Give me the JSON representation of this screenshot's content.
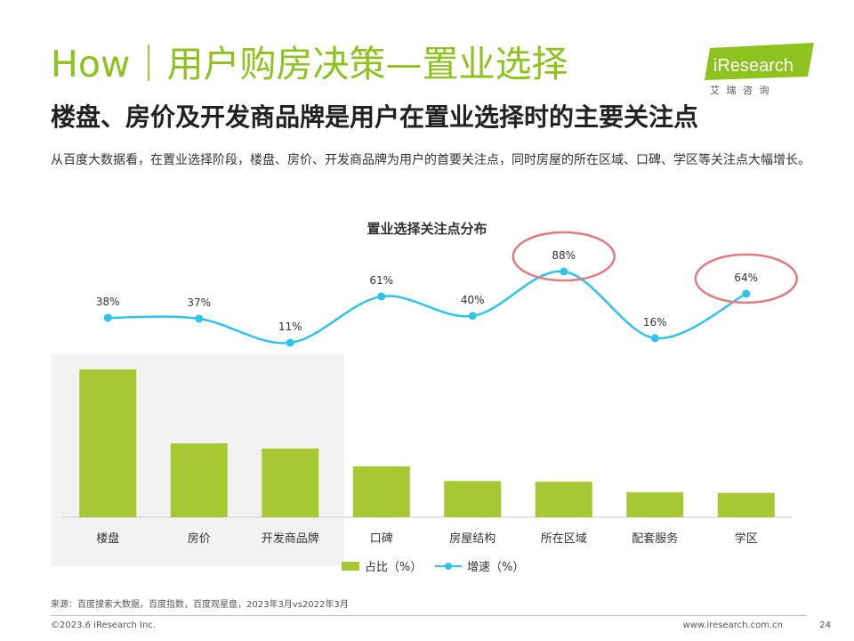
{
  "header": {
    "title": "How｜用户购房决策—置业选择",
    "subtitle": "楼盘、房价及开发商品牌是用户在置业选择时的主要关注点",
    "description": "从百度大数据看，在置业选择阶段，楼盘、房价、开发商品牌为用户的首要关注点，同时房屋的所在区域、口碑、学区等关注点大幅增长。"
  },
  "logo": {
    "brand": "iResearch",
    "cn": "艾 瑞 咨 询",
    "colors": {
      "green": "#8dc21f",
      "text": "#ffffff"
    }
  },
  "chart_data": {
    "type": "bar",
    "title": "置业选择关注点分布",
    "categories": [
      "楼盘",
      "房价",
      "开发商品牌",
      "口碑",
      "房屋结构",
      "所在区域",
      "配套服务",
      "学区"
    ],
    "series": [
      {
        "name": "占比（%）",
        "type": "bar",
        "color": "#a6c933",
        "values": [
          100,
          50,
          46.5,
          34.5,
          24.5,
          24,
          17,
          16.5
        ]
      },
      {
        "name": "增速（%）",
        "type": "line",
        "color": "#2ec4ea",
        "values": [
          38,
          37,
          11,
          61,
          40,
          88,
          16,
          64
        ],
        "labels": [
          "38%",
          "37%",
          "11%",
          "61%",
          "40%",
          "88%",
          "16%",
          "64%"
        ]
      }
    ],
    "highlights": [
      "所在区域",
      "学区"
    ],
    "shaded_categories": [
      "楼盘",
      "房价",
      "开发商品牌"
    ],
    "colors": {
      "shade": "#f2f2f2",
      "highlight_ring": "#e07a82",
      "axis": "#cccccc"
    }
  },
  "footer": {
    "source": "来源：百度搜索大数据，百度指数，百度观星盘，2023年3月vs2022年3月",
    "copyright": "©2023.6 iResearch Inc.",
    "website": "www.iresearch.com.cn",
    "page": "24"
  }
}
